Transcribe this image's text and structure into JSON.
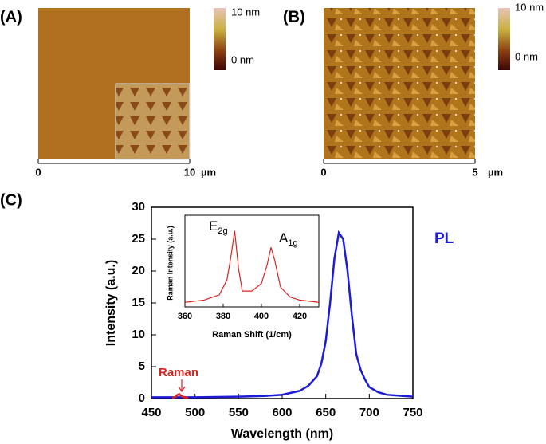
{
  "panels": [
    {
      "label": "(A)",
      "colorbar": {
        "max": "10 nm",
        "min": "0 nm"
      },
      "axis": {
        "ticks": [
          0,
          10
        ],
        "unit": "µm"
      }
    },
    {
      "label": "(B)",
      "colorbar": {
        "max": "10 nm",
        "min": "0 nm"
      },
      "axis": {
        "ticks": [
          0,
          5
        ],
        "unit": "µm"
      }
    }
  ],
  "chart_data": {
    "type": "line",
    "label": "(C)",
    "xlabel": "Wavelength (nm)",
    "ylabel": "Intensity (a.u.)",
    "xlim": [
      450,
      750
    ],
    "ylim": [
      0,
      30
    ],
    "xticks": [
      450,
      500,
      550,
      600,
      650,
      700,
      750
    ],
    "yticks": [
      0,
      5,
      10,
      15,
      20,
      25,
      30
    ],
    "series": [
      {
        "name": "PL",
        "color": "#1c1cd6",
        "x": [
          450,
          500,
          550,
          580,
          600,
          620,
          630,
          640,
          645,
          650,
          655,
          660,
          665,
          670,
          675,
          680,
          685,
          690,
          695,
          700,
          710,
          720,
          750
        ],
        "values": [
          0.2,
          0.2,
          0.3,
          0.4,
          0.6,
          1.2,
          2,
          3.5,
          5.5,
          9,
          15,
          22,
          26,
          25,
          20,
          13,
          7,
          4.5,
          3,
          1.8,
          1,
          0.6,
          0.3
        ]
      },
      {
        "name": "Raman",
        "color": "#e02020",
        "x": [
          474,
          478,
          480,
          482,
          484,
          488,
          492
        ],
        "values": [
          0.1,
          0.3,
          0.6,
          0.7,
          0.4,
          0.2,
          0.1
        ]
      }
    ],
    "inset": {
      "type": "line",
      "xlabel": "Raman Shift (1/cm)",
      "ylabel": "Raman Intensity (a.u.)",
      "xlim": [
        360,
        430
      ],
      "ylim": [
        0,
        1.1
      ],
      "xticks": [
        360,
        380,
        400,
        420
      ],
      "color": "#e02020",
      "x": [
        360,
        370,
        378,
        382,
        384,
        386,
        388,
        390,
        395,
        400,
        403,
        405,
        407,
        410,
        415,
        420,
        430
      ],
      "values": [
        0.05,
        0.08,
        0.15,
        0.35,
        0.65,
        1.0,
        0.5,
        0.2,
        0.2,
        0.3,
        0.55,
        0.78,
        0.6,
        0.25,
        0.12,
        0.08,
        0.05
      ],
      "peaks": [
        {
          "text": "E",
          "sub": "2g"
        },
        {
          "text": "A",
          "sub": "1g"
        }
      ]
    }
  }
}
